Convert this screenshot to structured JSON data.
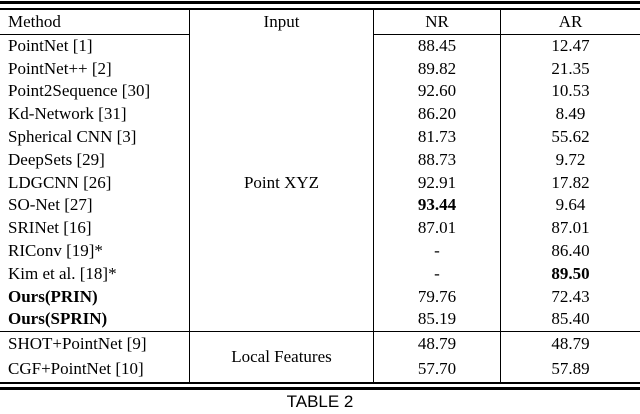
{
  "colors": {
    "text": "#000000",
    "background": "#ffffff",
    "rule": "#000000"
  },
  "table": {
    "caption": "TABLE 2",
    "columns": [
      "Method",
      "Input",
      "NR",
      "AR"
    ],
    "groups": [
      {
        "input": "Point XYZ",
        "rows": [
          {
            "method": "PointNet [1]",
            "nr": "88.45",
            "ar": "12.47"
          },
          {
            "method": "PointNet++ [2]",
            "nr": "89.82",
            "ar": "21.35"
          },
          {
            "method": "Point2Sequence [30]",
            "nr": "92.60",
            "ar": "10.53"
          },
          {
            "method": "Kd-Network [31]",
            "nr": "86.20",
            "ar": "8.49"
          },
          {
            "method": "Spherical CNN [3]",
            "nr": "81.73",
            "ar": "55.62"
          },
          {
            "method": "DeepSets [29]",
            "nr": "88.73",
            "ar": "9.72"
          },
          {
            "method": "LDGCNN [26]",
            "nr": "92.91",
            "ar": "17.82"
          },
          {
            "method": "SO-Net [27]",
            "nr": "93.44",
            "nr_bold": true,
            "ar": "9.64"
          },
          {
            "method": "SRINet [16]",
            "nr": "87.01",
            "ar": "87.01"
          },
          {
            "method": "RIConv [19]*",
            "nr": "-",
            "ar": "86.40"
          },
          {
            "method": "Kim et al. [18]*",
            "nr": "-",
            "ar": "89.50",
            "ar_bold": true
          },
          {
            "method": "Ours(PRIN)",
            "method_bold": true,
            "nr": "79.76",
            "ar": "72.43"
          },
          {
            "method": "Ours(SPRIN)",
            "method_bold": true,
            "nr": "85.19",
            "ar": "85.40"
          }
        ]
      },
      {
        "input": "Local Features",
        "rows": [
          {
            "method": "SHOT+PointNet [9]",
            "nr": "48.79",
            "ar": "48.79"
          },
          {
            "method": "CGF+PointNet [10]",
            "nr": "57.70",
            "ar": "57.89"
          }
        ]
      }
    ]
  }
}
